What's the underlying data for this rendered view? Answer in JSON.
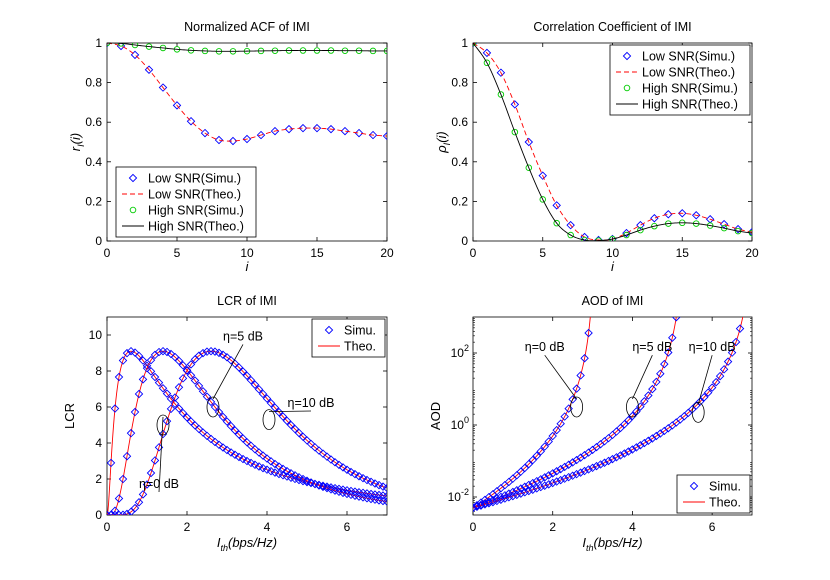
{
  "colors": {
    "simu": "#0000ff",
    "theo": "#ff0000",
    "high_simu": "#00cc00",
    "high_theo": "#000000"
  },
  "chart_data": [
    {
      "id": "acf",
      "type": "line",
      "title": "Normalized ACF of IMI",
      "xlabel": "i",
      "ylabel_main": "r",
      "ylabel_sub": "I",
      "ylabel_arg": "(i)",
      "xlim": [
        0,
        20
      ],
      "ylim": [
        0,
        1
      ],
      "yscale": "linear",
      "xticks": [
        0,
        5,
        10,
        15,
        20
      ],
      "xtick_labels": [
        "0",
        "5",
        "10",
        "15",
        "20"
      ],
      "yticks": [
        0,
        0.2,
        0.4,
        0.6,
        0.8,
        1
      ],
      "ytick_labels": [
        "0",
        "0.2",
        "0.4",
        "0.6",
        "0.8",
        "1"
      ],
      "legend_position": "bottom-left",
      "legend": [
        "Low SNR(Simu.)",
        "Low SNR(Theo.)",
        "High SNR(Simu.)",
        "High SNR(Theo.)"
      ],
      "series": [
        {
          "name": "Low SNR(Simu.)",
          "style": "marker-diamond",
          "color": "#0000ff",
          "x": [
            0,
            1,
            2,
            3,
            4,
            5,
            6,
            7,
            8,
            9,
            10,
            11,
            12,
            13,
            14,
            15,
            16,
            17,
            18,
            19,
            20
          ],
          "y": [
            1,
            0.985,
            0.94,
            0.865,
            0.775,
            0.685,
            0.605,
            0.545,
            0.51,
            0.505,
            0.515,
            0.535,
            0.555,
            0.565,
            0.57,
            0.57,
            0.565,
            0.555,
            0.545,
            0.535,
            0.53
          ]
        },
        {
          "name": "Low SNR(Theo.)",
          "style": "dashed",
          "color": "#ff0000",
          "x": [
            0,
            1,
            2,
            3,
            4,
            5,
            6,
            7,
            8,
            9,
            10,
            11,
            12,
            13,
            14,
            15,
            16,
            17,
            18,
            19,
            20
          ],
          "y": [
            1,
            0.985,
            0.94,
            0.865,
            0.775,
            0.685,
            0.605,
            0.545,
            0.51,
            0.505,
            0.515,
            0.535,
            0.555,
            0.565,
            0.57,
            0.57,
            0.565,
            0.555,
            0.545,
            0.535,
            0.53
          ]
        },
        {
          "name": "High SNR(Simu.)",
          "style": "marker-circle",
          "color": "#00cc00",
          "x": [
            0,
            1,
            2,
            3,
            4,
            5,
            6,
            7,
            8,
            9,
            10,
            11,
            12,
            13,
            14,
            15,
            16,
            17,
            18,
            19,
            20
          ],
          "y": [
            1,
            0.998,
            0.99,
            0.982,
            0.975,
            0.968,
            0.963,
            0.96,
            0.958,
            0.958,
            0.959,
            0.96,
            0.961,
            0.962,
            0.962,
            0.962,
            0.962,
            0.961,
            0.961,
            0.96,
            0.96
          ]
        },
        {
          "name": "High SNR(Theo.)",
          "style": "solid",
          "color": "#000000",
          "x": [
            0,
            1,
            2,
            3,
            4,
            5,
            6,
            7,
            8,
            9,
            10,
            11,
            12,
            13,
            14,
            15,
            16,
            17,
            18,
            19,
            20
          ],
          "y": [
            1,
            0.998,
            0.99,
            0.982,
            0.975,
            0.968,
            0.963,
            0.96,
            0.958,
            0.958,
            0.959,
            0.96,
            0.961,
            0.962,
            0.962,
            0.962,
            0.962,
            0.961,
            0.961,
            0.96,
            0.96
          ]
        }
      ]
    },
    {
      "id": "cc",
      "type": "line",
      "title": "Correlation Coefficient of IMI",
      "xlabel": "i",
      "ylabel_main": "ρ",
      "ylabel_sub": "I",
      "ylabel_arg": "(i)",
      "xlim": [
        0,
        20
      ],
      "ylim": [
        0,
        1
      ],
      "yscale": "linear",
      "xticks": [
        0,
        5,
        10,
        15,
        20
      ],
      "xtick_labels": [
        "0",
        "5",
        "10",
        "15",
        "20"
      ],
      "yticks": [
        0,
        0.2,
        0.4,
        0.6,
        0.8,
        1
      ],
      "ytick_labels": [
        "0",
        "0.2",
        "0.4",
        "0.6",
        "0.8",
        "1"
      ],
      "legend_position": "top-right",
      "legend": [
        "Low SNR(Simu.)",
        "Low SNR(Theo.)",
        "High SNR(Simu.)",
        "High SNR(Theo.)"
      ],
      "series": [
        {
          "name": "Low SNR(Simu.)",
          "style": "marker-diamond",
          "color": "#0000ff",
          "x": [
            0,
            1,
            2,
            3,
            4,
            5,
            6,
            7,
            8,
            9,
            10,
            11,
            12,
            13,
            14,
            15,
            16,
            17,
            18,
            19,
            20
          ],
          "y": [
            1,
            0.95,
            0.85,
            0.69,
            0.5,
            0.33,
            0.18,
            0.08,
            0.02,
            0.005,
            0.01,
            0.04,
            0.08,
            0.115,
            0.135,
            0.14,
            0.13,
            0.11,
            0.085,
            0.06,
            0.045
          ]
        },
        {
          "name": "Low SNR(Theo.)",
          "style": "dashed",
          "color": "#ff0000",
          "x": [
            0,
            1,
            2,
            3,
            4,
            5,
            6,
            7,
            8,
            9,
            10,
            11,
            12,
            13,
            14,
            15,
            16,
            17,
            18,
            19,
            20
          ],
          "y": [
            1,
            0.95,
            0.85,
            0.69,
            0.5,
            0.33,
            0.18,
            0.08,
            0.02,
            0.005,
            0.01,
            0.04,
            0.08,
            0.115,
            0.135,
            0.14,
            0.13,
            0.11,
            0.085,
            0.06,
            0.045
          ]
        },
        {
          "name": "High SNR(Simu.)",
          "style": "marker-circle",
          "color": "#00cc00",
          "x": [
            0,
            1,
            2,
            3,
            4,
            5,
            6,
            7,
            8,
            9,
            10,
            11,
            12,
            13,
            14,
            15,
            16,
            17,
            18,
            19,
            20
          ],
          "y": [
            1,
            0.9,
            0.74,
            0.55,
            0.37,
            0.21,
            0.09,
            0.03,
            0.005,
            0.002,
            0.01,
            0.03,
            0.055,
            0.075,
            0.088,
            0.092,
            0.088,
            0.078,
            0.065,
            0.05,
            0.04
          ]
        },
        {
          "name": "High SNR(Theo.)",
          "style": "solid",
          "color": "#000000",
          "x": [
            0,
            1,
            2,
            3,
            4,
            5,
            6,
            7,
            8,
            9,
            10,
            11,
            12,
            13,
            14,
            15,
            16,
            17,
            18,
            19,
            20
          ],
          "y": [
            1,
            0.9,
            0.74,
            0.55,
            0.37,
            0.21,
            0.09,
            0.03,
            0.005,
            0.002,
            0.01,
            0.03,
            0.055,
            0.075,
            0.088,
            0.092,
            0.088,
            0.078,
            0.065,
            0.05,
            0.04
          ]
        }
      ]
    },
    {
      "id": "lcr",
      "type": "line",
      "title": "LCR of IMI",
      "xlabel_main": "I",
      "xlabel_sub": "th",
      "xlabel_arg": "(bps/Hz)",
      "ylabel": "LCR",
      "xlim": [
        0,
        7
      ],
      "ylim": [
        0,
        11
      ],
      "yscale": "linear",
      "xticks": [
        0,
        2,
        4,
        6
      ],
      "xtick_labels": [
        "0",
        "2",
        "4",
        "6"
      ],
      "yticks": [
        0,
        2,
        4,
        6,
        8,
        10
      ],
      "ytick_labels": [
        "0",
        "2",
        "4",
        "6",
        "8",
        "10"
      ],
      "legend_position": "top-right",
      "legend": [
        "Simu.",
        "Theo."
      ],
      "series": [
        {
          "name": "η=0 dB",
          "peak": 9.1,
          "mu": 0.6,
          "sigma": 0.55,
          "x_range": [
            0,
            7
          ]
        },
        {
          "name": "η=5 dB",
          "peak": 9.1,
          "mu": 1.4,
          "sigma": 0.78,
          "x_range": [
            0,
            7
          ]
        },
        {
          "name": "η=10 dB",
          "peak": 9.1,
          "mu": 2.6,
          "sigma": 1.05,
          "x_range": [
            0,
            7
          ]
        }
      ],
      "annotations": [
        {
          "text": "η=5 dB",
          "point": [
            2.65,
            6.0
          ],
          "label_at": [
            3.4,
            9.7
          ]
        },
        {
          "text": "η=10 dB",
          "point": [
            4.05,
            5.3
          ],
          "label_at": [
            5.1,
            6.0
          ]
        },
        {
          "text": "η=0 dB",
          "point": [
            1.4,
            5.0
          ],
          "label_at": [
            1.3,
            1.5
          ]
        }
      ]
    },
    {
      "id": "aod",
      "type": "line",
      "title": "AOD of IMI",
      "xlabel_main": "I",
      "xlabel_sub": "th",
      "xlabel_arg": "(bps/Hz)",
      "ylabel": "AOD",
      "xlim": [
        0,
        7
      ],
      "ylim_log10": [
        -2.5,
        3
      ],
      "yscale": "log",
      "xticks": [
        0,
        2,
        4,
        6
      ],
      "xtick_labels": [
        "0",
        "2",
        "4",
        "6"
      ],
      "yticks_log10": [
        -2,
        0,
        2
      ],
      "ytick_labels": [
        "10",
        "10",
        "10"
      ],
      "ytick_exponents": [
        "-2",
        "0",
        "2"
      ],
      "legend_position": "bottom-right",
      "legend": [
        "Simu.",
        "Theo."
      ],
      "series": [
        {
          "name": "η=0 dB",
          "x_end": 3.0
        },
        {
          "name": "η=5 dB",
          "x_end": 5.2
        },
        {
          "name": "η=10 dB",
          "x_end": 6.9
        }
      ],
      "annotations": [
        {
          "text": "η=0 dB",
          "point": [
            2.6,
            0.5
          ],
          "label_at": [
            1.8,
            2.05
          ]
        },
        {
          "text": "η=5 dB",
          "point": [
            4.0,
            0.5
          ],
          "label_at": [
            4.5,
            2.05
          ]
        },
        {
          "text": "η=10 dB",
          "point": [
            5.65,
            0.35
          ],
          "label_at": [
            6.0,
            2.05
          ]
        }
      ]
    }
  ]
}
